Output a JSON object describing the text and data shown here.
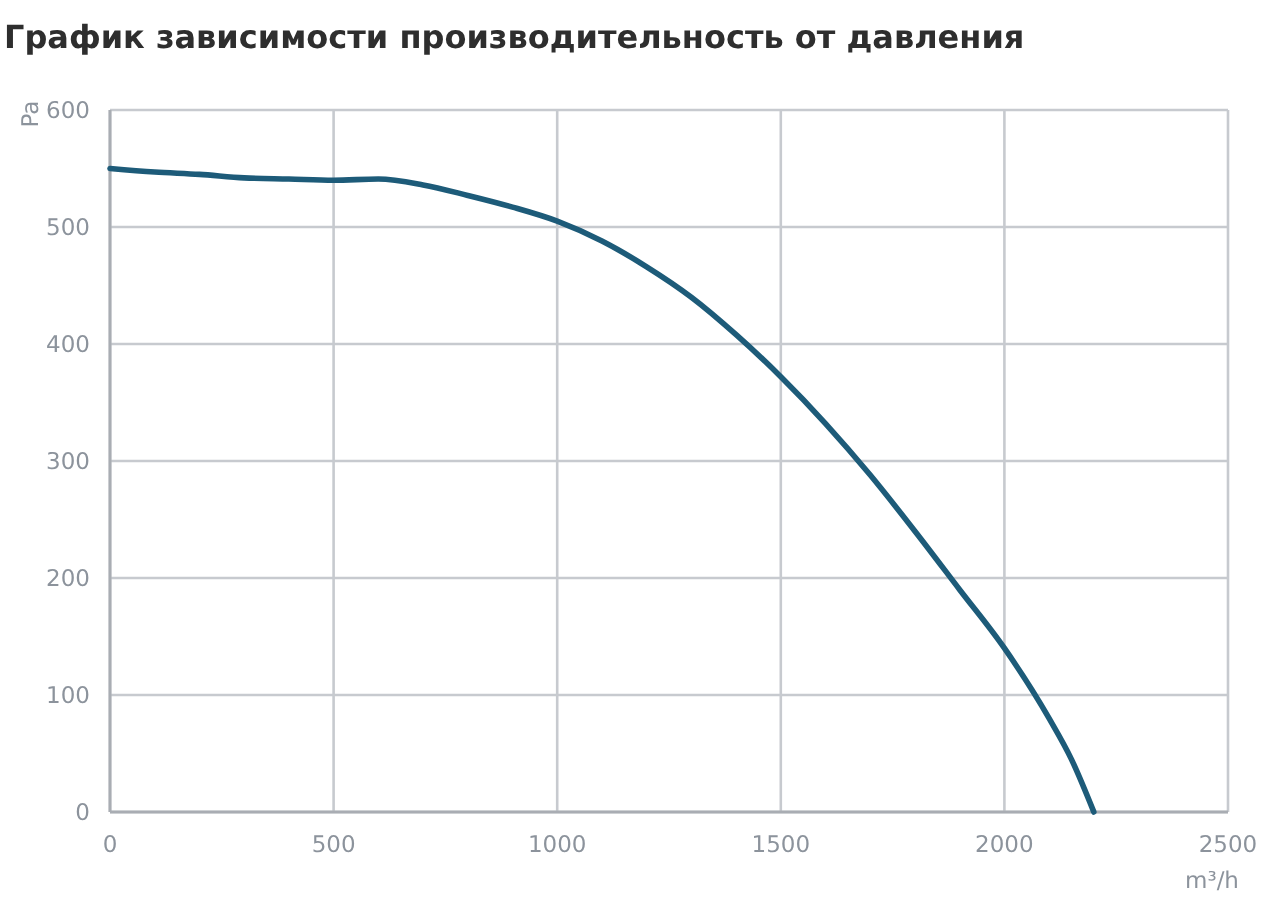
{
  "chart_data": {
    "type": "line",
    "title": "График зависимости производительность от давления",
    "xlabel": "m³/h",
    "ylabel": "Pa",
    "x": [
      0,
      100,
      200,
      300,
      400,
      500,
      600,
      700,
      800,
      900,
      1000,
      1100,
      1200,
      1300,
      1400,
      1500,
      1600,
      1700,
      1800,
      1900,
      2000,
      2100,
      2150,
      2200
    ],
    "series": [
      {
        "color": "#1d5b79",
        "values": [
          550,
          547,
          545,
          542,
          541,
          540,
          541,
          536,
          527,
          517,
          505,
          488,
          466,
          440,
          408,
          372,
          332,
          288,
          240,
          190,
          140,
          80,
          45,
          0
        ]
      }
    ],
    "xlim": [
      0,
      2500
    ],
    "ylim": [
      0,
      600
    ],
    "xticks": [
      0,
      500,
      1000,
      1500,
      2000,
      2500
    ],
    "yticks": [
      0,
      100,
      200,
      300,
      400,
      500,
      600
    ],
    "grid": true
  }
}
